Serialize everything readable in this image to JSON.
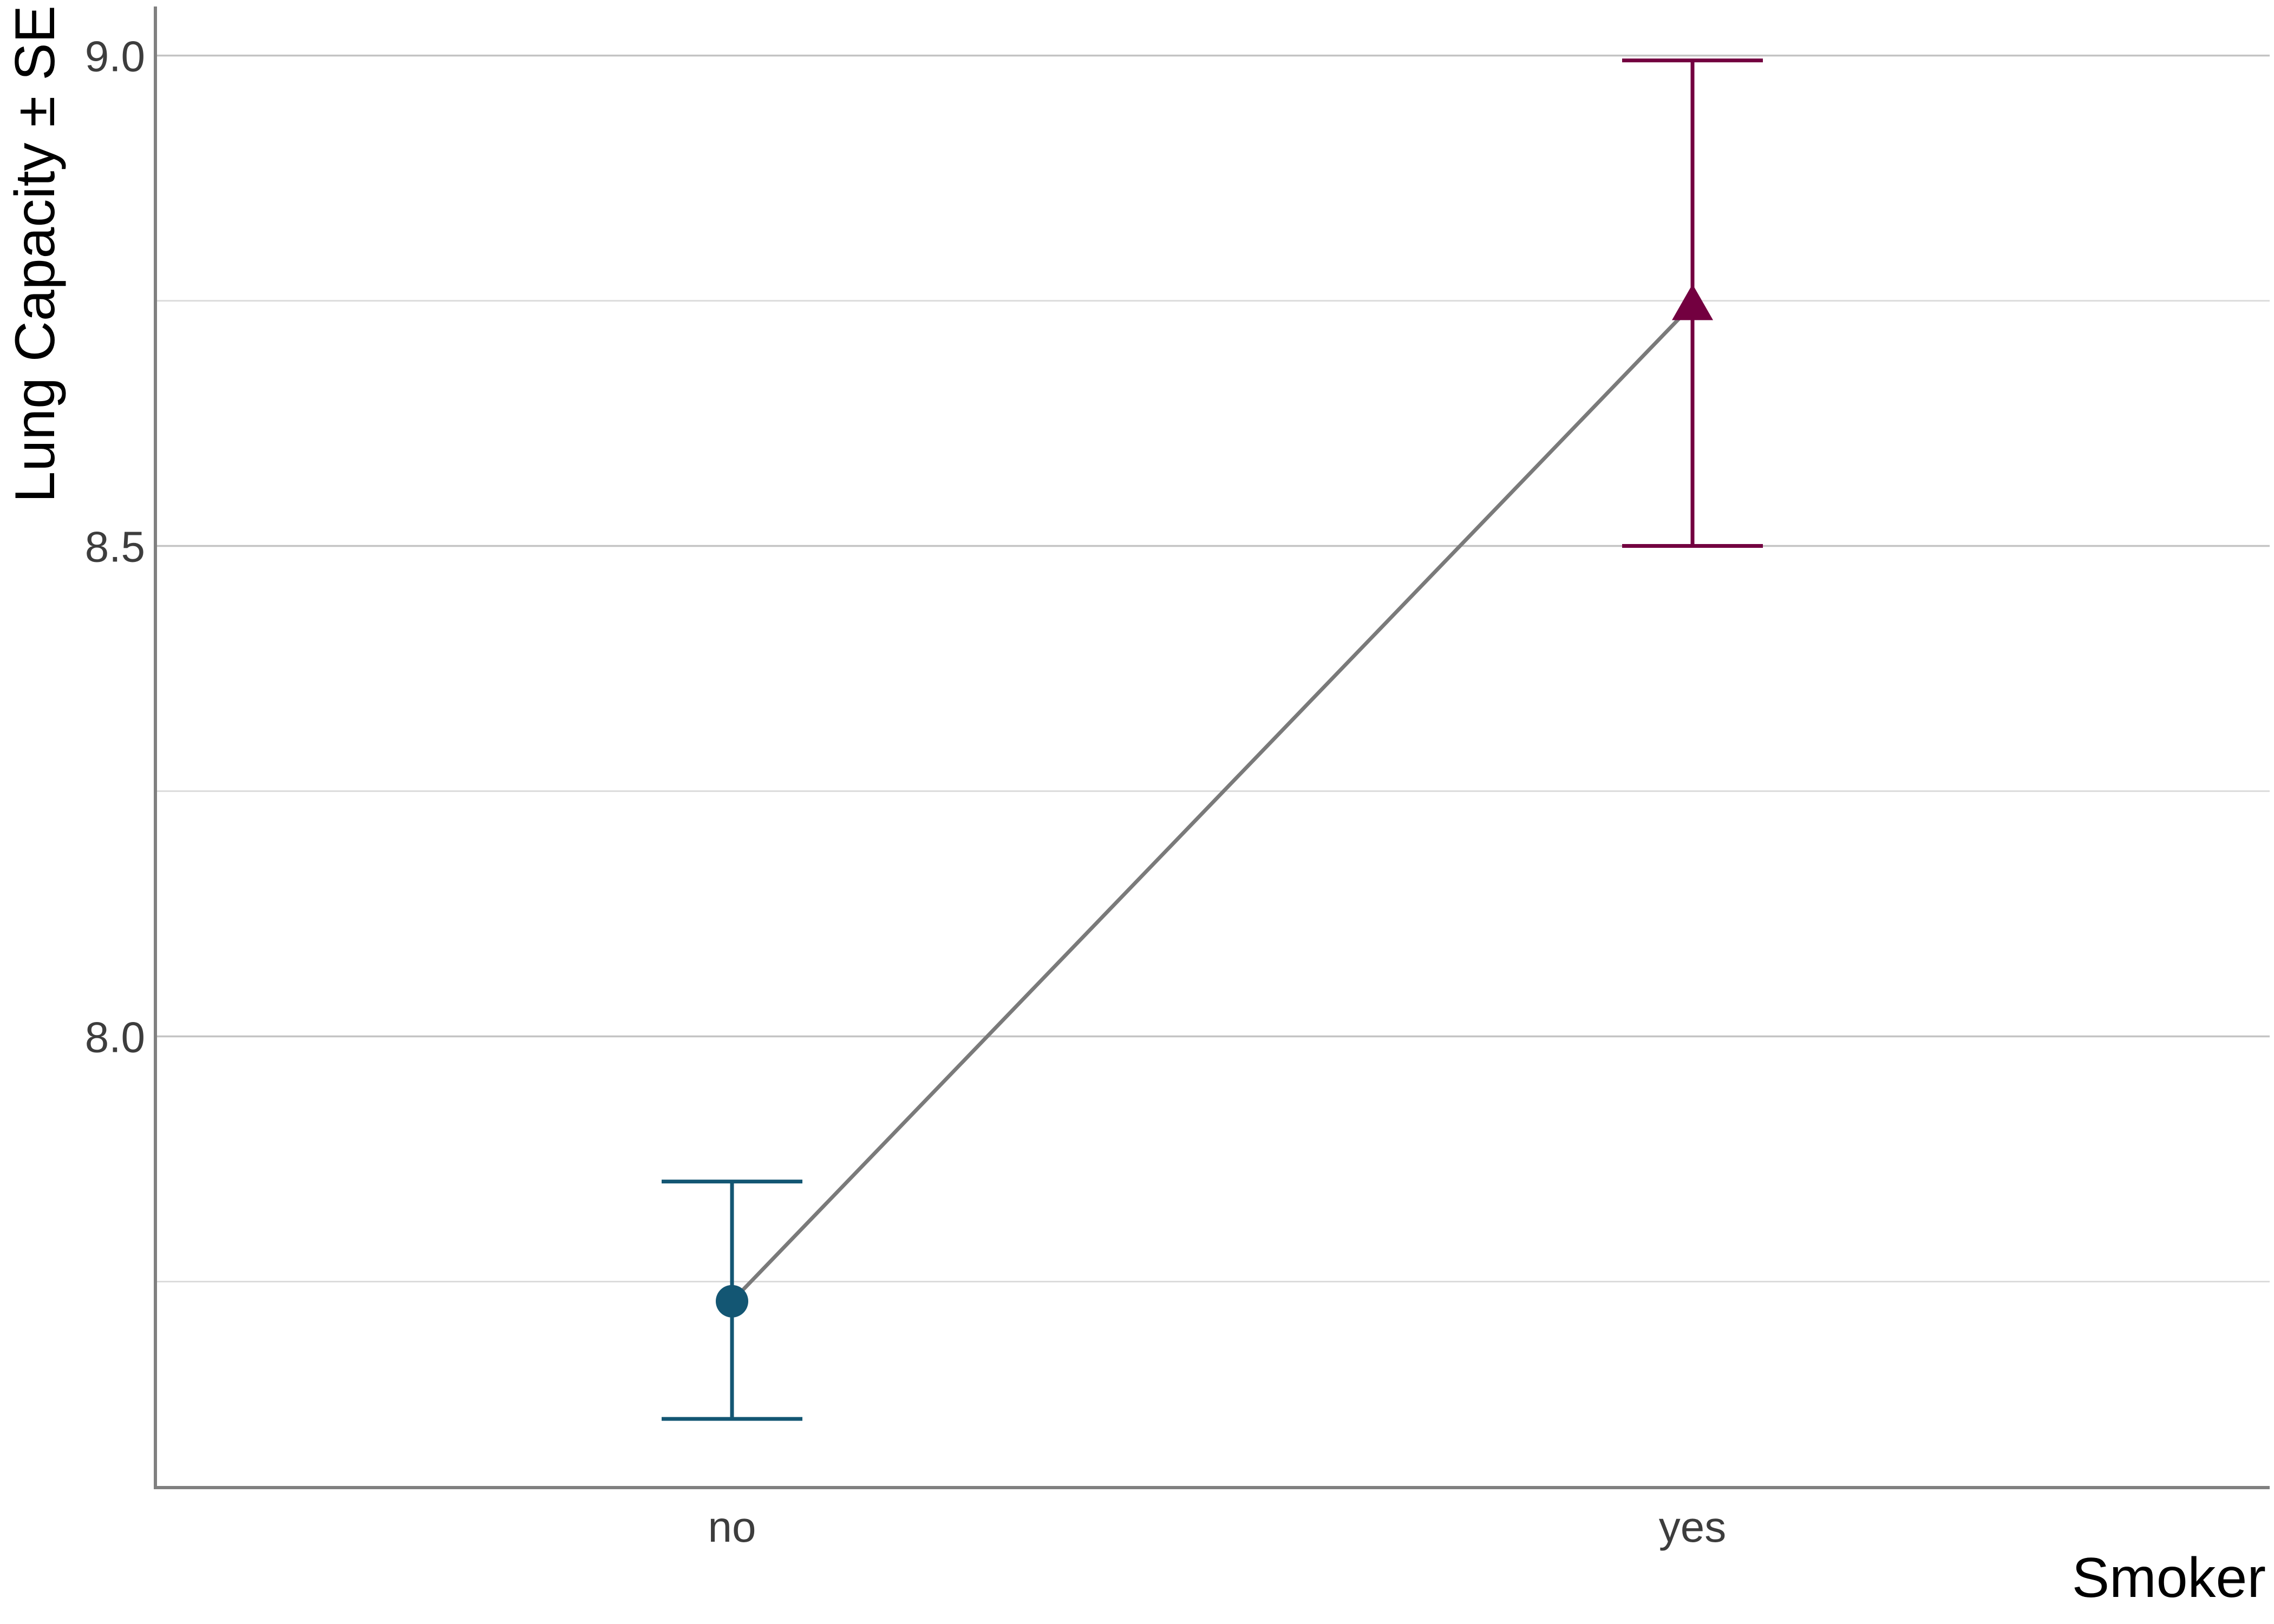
{
  "chart_data": {
    "type": "line",
    "xlabel": "Smoker",
    "ylabel": "Lung Capacity ± SE",
    "categories": [
      "no",
      "yes"
    ],
    "ylim": [
      7.54,
      9.05
    ],
    "yticks": [
      {
        "value": 8.0,
        "label": "8.0"
      },
      {
        "value": 8.5,
        "label": "8.5"
      },
      {
        "value": 9.0,
        "label": "9.0"
      }
    ],
    "minor_gridlines": [
      7.75,
      8.25,
      8.75
    ],
    "grid": "horizontal",
    "points": [
      {
        "category": "no",
        "mean": 7.73,
        "lower": 7.61,
        "upper": 7.852,
        "marker": "circle",
        "color": "#135673"
      },
      {
        "category": "yes",
        "mean": 8.746,
        "lower": 8.5,
        "upper": 8.995,
        "marker": "triangle",
        "color": "#730040"
      }
    ],
    "connector_color": "#7a7a7a"
  }
}
